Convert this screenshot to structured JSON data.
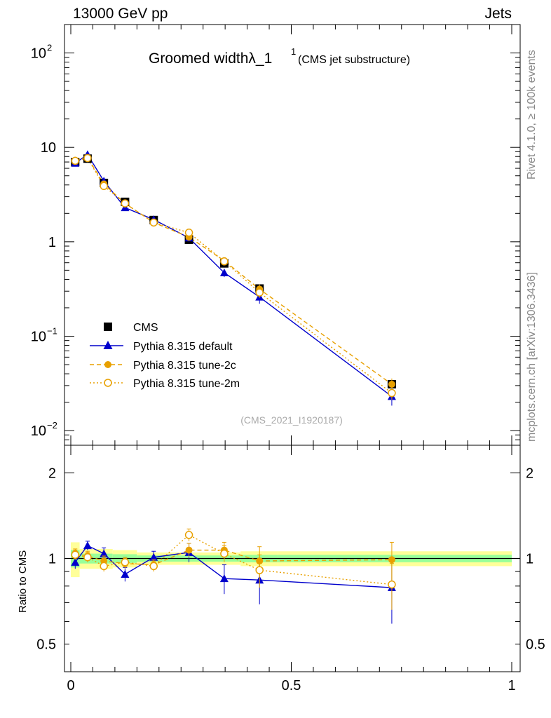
{
  "header": {
    "energy_label": "13000 GeV pp",
    "category_label": "Jets"
  },
  "side_labels": {
    "rivet": "Rivet 4.1.0, ≥ 100k events",
    "mcplots": "mcplots.cern.ch [arXiv:1306.3436]"
  },
  "chart_data": {
    "type": "line",
    "title_main": "Groomed widthλ_1",
    "title_sup": "1",
    "title_sub": "(CMS jet substructure)",
    "analysis_id": "(CMS_2021_I1920187)",
    "xlim": [
      0,
      1
    ],
    "x_ticks": [
      "0",
      "0.5",
      "1"
    ],
    "main_ylim": [
      0.007,
      200
    ],
    "main_yscale": "log",
    "main_y_ticks": [
      {
        "value": 100,
        "base": "10",
        "exp": "2"
      },
      {
        "value": 10,
        "base": "10",
        "exp": ""
      },
      {
        "value": 1,
        "base": "1",
        "exp": ""
      },
      {
        "value": 0.1,
        "base": "10",
        "exp": "−1"
      },
      {
        "value": 0.01,
        "base": "10",
        "exp": "−2"
      }
    ],
    "ratio_ylabel": "Ratio to CMS",
    "ratio_ylim": [
      0.4,
      2.5
    ],
    "ratio_yscale": "log",
    "ratio_y_ticks": [
      "0.5",
      "1",
      "2"
    ],
    "x": [
      0.01,
      0.038,
      0.075,
      0.123,
      0.188,
      0.268,
      0.348,
      0.428,
      0.728
    ],
    "bin_edges": [
      0,
      0.02,
      0.055,
      0.095,
      0.15,
      0.225,
      0.31,
      0.385,
      0.47,
      1.0
    ],
    "cms": {
      "name": "CMS",
      "values": [
        7.0,
        7.6,
        4.2,
        2.65,
        1.7,
        1.05,
        0.59,
        0.32,
        0.031
      ],
      "band_yellow": [
        0.14,
        0.08,
        0.08,
        0.07,
        0.05,
        0.05,
        0.05,
        0.06,
        0.06
      ],
      "band_green": [
        0.07,
        0.04,
        0.04,
        0.035,
        0.025,
        0.025,
        0.025,
        0.03,
        0.03
      ]
    },
    "series": [
      {
        "name": "Pythia 8.315 default",
        "color": "#0000cc",
        "dash": "solid",
        "marker": "triangle",
        "values": [
          6.8,
          8.4,
          4.4,
          2.3,
          1.72,
          1.1,
          0.47,
          0.26,
          0.023
        ],
        "ratio": [
          0.97,
          1.11,
          1.04,
          0.88,
          1.01,
          1.05,
          0.85,
          0.84,
          0.79
        ],
        "ratio_err": [
          0.05,
          0.04,
          0.05,
          0.05,
          0.05,
          0.08,
          0.1,
          0.15,
          0.2
        ]
      },
      {
        "name": "Pythia 8.315 tune-2c",
        "color": "#e8a000",
        "dash": "6,4",
        "marker": "filled-circle",
        "values": [
          7.3,
          7.8,
          4.1,
          2.55,
          1.6,
          1.12,
          0.63,
          0.315,
          0.031
        ],
        "ratio": [
          1.04,
          1.02,
          0.98,
          0.96,
          0.95,
          1.07,
          1.07,
          0.98,
          0.99
        ],
        "ratio_err": [
          0.04,
          0.04,
          0.04,
          0.04,
          0.04,
          0.06,
          0.07,
          0.12,
          0.15
        ]
      },
      {
        "name": "Pythia 8.315 tune-2m",
        "color": "#e8a000",
        "dash": "2,3",
        "marker": "open-circle",
        "values": [
          7.2,
          7.7,
          3.9,
          2.55,
          1.6,
          1.25,
          0.62,
          0.29,
          0.025
        ],
        "ratio": [
          1.03,
          1.01,
          0.94,
          0.97,
          0.94,
          1.21,
          1.04,
          0.91,
          0.81
        ],
        "ratio_err": [
          0.04,
          0.04,
          0.04,
          0.04,
          0.04,
          0.06,
          0.07,
          0.12,
          0.15
        ]
      }
    ]
  }
}
